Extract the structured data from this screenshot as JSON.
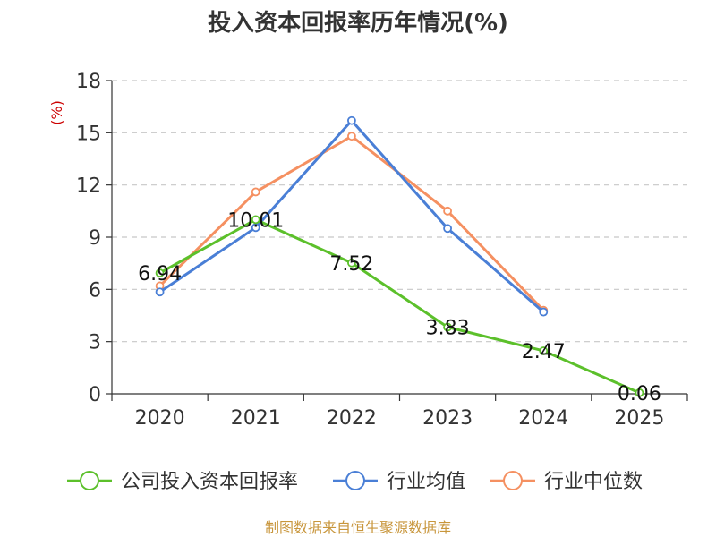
{
  "chart_data": {
    "type": "line",
    "title": "投入资本回报率历年情况(%)",
    "ylabel": "(%)",
    "xlabel": "",
    "categories": [
      "2020",
      "2021",
      "2022",
      "2023",
      "2024",
      "2025"
    ],
    "ylim": [
      0,
      18
    ],
    "yticks": [
      0,
      3,
      6,
      9,
      12,
      15,
      18
    ],
    "grid": true,
    "legend_position": "bottom",
    "series": [
      {
        "name": "公司投入资本回报率",
        "color": "#5cc02b",
        "values": [
          6.94,
          10.01,
          7.52,
          3.83,
          2.47,
          0.06
        ],
        "labels": [
          "6.94",
          "10.01",
          "7.52",
          "3.83",
          "2.47",
          "0.06"
        ]
      },
      {
        "name": "行业均值",
        "color": "#4a7fd6",
        "values": [
          5.85,
          9.55,
          15.7,
          9.5,
          4.7,
          null
        ]
      },
      {
        "name": "行业中位数",
        "color": "#f59061",
        "values": [
          6.2,
          11.6,
          14.8,
          10.5,
          4.8,
          null
        ]
      }
    ],
    "source": "制图数据来自恒生聚源数据库"
  }
}
